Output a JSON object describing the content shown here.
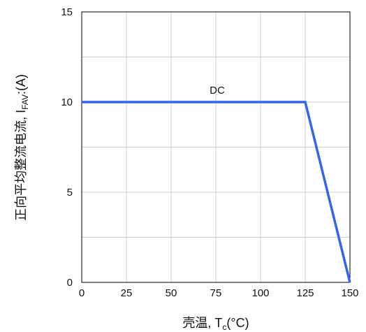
{
  "chart_data": {
    "type": "line",
    "x": [
      0,
      125,
      150
    ],
    "series": [
      {
        "values": [
          10,
          10,
          0
        ],
        "color": "#3366ee"
      }
    ],
    "xlim": [
      0,
      150
    ],
    "ylim": [
      0,
      15
    ],
    "x_ticks": [
      0,
      25,
      50,
      75,
      100,
      125,
      150
    ],
    "y_ticks": [
      0,
      5,
      10,
      15
    ],
    "xlabel": {
      "prefix": "壳温, T",
      "sub": "c",
      "suffix": "(°C)"
    },
    "ylabel": {
      "prefix": "正向平均整流电流, I",
      "sub": "FAV",
      "suffix": ":(A)"
    },
    "annotations": [
      {
        "text": "DC",
        "x": 75,
        "y": 10
      }
    ],
    "grid": true,
    "grid_color": "#cccccc",
    "axis_color": "#000000"
  }
}
